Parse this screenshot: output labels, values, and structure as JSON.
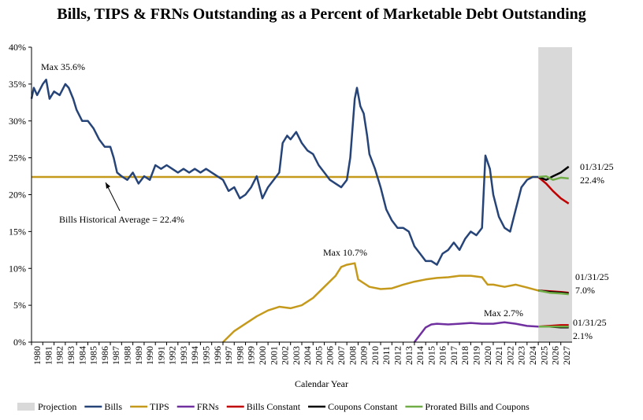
{
  "chart_data": {
    "type": "line",
    "title": "Bills, TIPS & FRNs Outstanding as a Percent of Marketable Debt Outstanding",
    "x_label": "Calendar Year",
    "xlim": [
      1980,
      2028
    ],
    "xticks": [
      1980,
      1981,
      1982,
      1983,
      1984,
      1985,
      1986,
      1987,
      1988,
      1989,
      1990,
      1991,
      1992,
      1993,
      1994,
      1995,
      1996,
      1997,
      1998,
      1999,
      2000,
      2001,
      2002,
      2003,
      2004,
      2005,
      2006,
      2007,
      2008,
      2009,
      2010,
      2011,
      2012,
      2013,
      2014,
      2015,
      2016,
      2017,
      2018,
      2019,
      2020,
      2021,
      2022,
      2023,
      2024,
      2025,
      2026,
      2027
    ],
    "ylim": [
      0,
      40
    ],
    "yticks": [
      {
        "value": 0,
        "label": "0%"
      },
      {
        "value": 5,
        "label": "5%"
      },
      {
        "value": 10,
        "label": "10%"
      },
      {
        "value": 15,
        "label": "15%"
      },
      {
        "value": 20,
        "label": "20%"
      },
      {
        "value": 25,
        "label": "25%"
      },
      {
        "value": 30,
        "label": "30%"
      },
      {
        "value": 35,
        "label": "35%"
      },
      {
        "value": 40,
        "label": "40%"
      }
    ],
    "projection": {
      "name": "Projection",
      "color": "#d9d9d9",
      "xlim": [
        2025,
        2028
      ]
    },
    "average": {
      "label": "Bills Historical Average = 22.4%",
      "value": 22.4,
      "color": "#c59a1c"
    },
    "annotations": [
      "Max 35.6%",
      "Max 10.7%",
      "Max 2.7%"
    ],
    "end_labels": [
      {
        "date": "01/31/25",
        "label": "22.4%"
      },
      {
        "date": "01/31/25",
        "label": "7.0%"
      },
      {
        "date": "01/31/25",
        "label": "2.1%"
      }
    ],
    "series": [
      {
        "name": "Bills",
        "color": "#264478",
        "x": [
          1980,
          1980.2,
          1980.5,
          1981,
          1981.3,
          1981.6,
          1982,
          1982.5,
          1983,
          1983.3,
          1983.7,
          1984,
          1984.5,
          1985,
          1985.5,
          1986,
          1986.5,
          1987,
          1987.3,
          1987.6,
          1988,
          1988.5,
          1989,
          1989.5,
          1990,
          1990.5,
          1991,
          1991.5,
          1992,
          1992.5,
          1993,
          1993.5,
          1994,
          1994.5,
          1995,
          1995.5,
          1996,
          1996.5,
          1997,
          1997.5,
          1998,
          1998.5,
          1999,
          1999.5,
          2000,
          2000.5,
          2001,
          2001.5,
          2002,
          2002.3,
          2002.7,
          2003,
          2003.5,
          2004,
          2004.5,
          2005,
          2005.5,
          2006,
          2006.5,
          2007,
          2007.5,
          2008,
          2008.3,
          2008.7,
          2008.9,
          2009.2,
          2009.5,
          2009.8,
          2010,
          2010.5,
          2011,
          2011.5,
          2012,
          2012.5,
          2013,
          2013.5,
          2014,
          2014.5,
          2015,
          2015.5,
          2016,
          2016.5,
          2017,
          2017.5,
          2018,
          2018.5,
          2019,
          2019.5,
          2020,
          2020.3,
          2020.7,
          2021,
          2021.5,
          2022,
          2022.5,
          2023,
          2023.5,
          2024,
          2024.5,
          2025
        ],
        "values": [
          33,
          34.5,
          33.5,
          35,
          35.6,
          33,
          34,
          33.5,
          35,
          34.5,
          33,
          31.5,
          30,
          30,
          29,
          27.5,
          26.5,
          26.5,
          25,
          23,
          22.5,
          22,
          23,
          21.5,
          22.5,
          22,
          24,
          23.5,
          24,
          23.5,
          23,
          23.5,
          23,
          23.5,
          23,
          23.5,
          23,
          22.5,
          22,
          20.5,
          21,
          19.5,
          20,
          21,
          22.5,
          19.5,
          21,
          22,
          23,
          27,
          28,
          27.5,
          28.5,
          27,
          26,
          25.5,
          24,
          23,
          22,
          21.5,
          21,
          22,
          25,
          33,
          34.5,
          32,
          31,
          28,
          25.5,
          23.5,
          21,
          18,
          16.5,
          15.5,
          15.5,
          15,
          13,
          12,
          11,
          11,
          10.5,
          12,
          12.5,
          13.5,
          12.5,
          14,
          15,
          14.5,
          15.5,
          25.3,
          23.5,
          20,
          17,
          15.5,
          15,
          18,
          21,
          22,
          22.4,
          22.4
        ]
      },
      {
        "name": "TIPS",
        "color": "#c59a1c",
        "x": [
          1997,
          1998,
          1999,
          2000,
          2001,
          2002,
          2003,
          2004,
          2005,
          2006,
          2007,
          2007.5,
          2008,
          2008.7,
          2009,
          2009.5,
          2010,
          2011,
          2012,
          2013,
          2014,
          2015,
          2016,
          2017,
          2018,
          2019,
          2020,
          2020.5,
          2021,
          2022,
          2023,
          2024,
          2025
        ],
        "values": [
          0,
          1.5,
          2.5,
          3.5,
          4.3,
          4.8,
          4.6,
          5,
          6,
          7.5,
          9,
          10.2,
          10.5,
          10.7,
          8.5,
          8,
          7.5,
          7.2,
          7.3,
          7.8,
          8.2,
          8.5,
          8.7,
          8.8,
          9,
          9,
          8.8,
          7.8,
          7.8,
          7.5,
          7.8,
          7.4,
          7
        ]
      },
      {
        "name": "FRNs",
        "color": "#7030a0",
        "x": [
          2014,
          2014.5,
          2015,
          2015.5,
          2016,
          2017,
          2018,
          2019,
          2020,
          2021,
          2022,
          2023,
          2024,
          2025
        ],
        "values": [
          0,
          1,
          2,
          2.4,
          2.5,
          2.4,
          2.5,
          2.6,
          2.5,
          2.5,
          2.7,
          2.5,
          2.2,
          2.1
        ]
      },
      {
        "name": "Bills Constant",
        "color": "#c00000",
        "x": [
          2025,
          2025.7,
          2026.3,
          2027,
          2027.7,
          null,
          2025,
          2026,
          2027,
          2027.7,
          null,
          2025,
          2026,
          2027,
          2027.7
        ],
        "values": [
          22.4,
          21.5,
          20.5,
          19.5,
          18.8,
          null,
          7,
          6.9,
          6.8,
          6.7,
          null,
          2.1,
          2.2,
          2.3,
          2.3
        ]
      },
      {
        "name": "Coupons Constant",
        "color": "#000000",
        "x": [
          2025,
          2025.7,
          2026.3,
          2027,
          2027.7,
          null,
          2025,
          2026,
          2027,
          2027.7,
          null,
          2025,
          2026,
          2027,
          2027.7
        ],
        "values": [
          22.4,
          22,
          22.5,
          23,
          23.8,
          null,
          7,
          6.8,
          6.7,
          6.6,
          null,
          2.1,
          2.1,
          2,
          2
        ]
      },
      {
        "name": "Prorated Bills and Coupons",
        "color": "#70ad47",
        "x": [
          2025,
          2025.7,
          2026.3,
          2027,
          2027.7,
          null,
          2025,
          2026,
          2027,
          2027.7,
          null,
          2025,
          2026,
          2027,
          2027.7
        ],
        "values": [
          22.4,
          22.5,
          22,
          22.3,
          22.2,
          null,
          7,
          6.7,
          6.6,
          6.5,
          null,
          2.1,
          2.1,
          2.1,
          2.1
        ]
      }
    ]
  }
}
